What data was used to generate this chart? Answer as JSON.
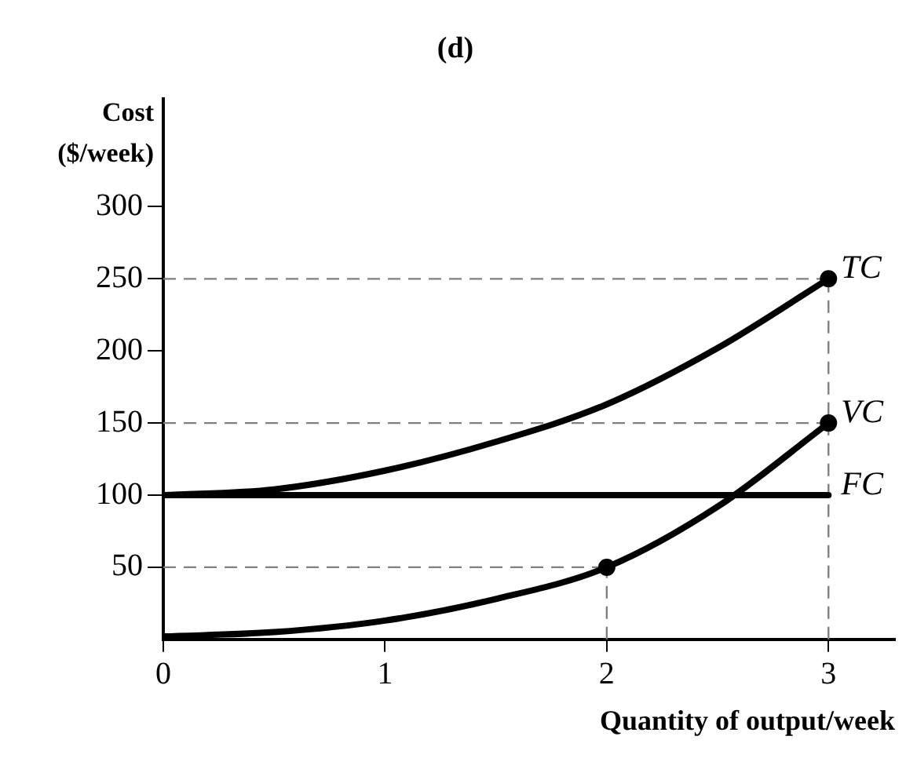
{
  "chart_data": {
    "type": "line",
    "title": "(d)",
    "xlabel": "Quantity of output/week",
    "ylabel": "Cost\n($/week)",
    "x": [
      0,
      0.5,
      1,
      1.5,
      2,
      2.5,
      3
    ],
    "series": [
      {
        "name": "TC",
        "color": "#000000",
        "values": [
          100,
          104,
          117,
          137,
          163,
          202,
          250
        ]
      },
      {
        "name": "VC",
        "color": "#000000",
        "values": [
          2,
          5,
          13,
          28,
          50,
          92,
          150
        ]
      },
      {
        "name": "FC",
        "color": "#000000",
        "values": [
          100,
          100,
          100,
          100,
          100,
          100,
          100
        ]
      },
      {
        "type": "scatter",
        "color": "#000000",
        "marker": "circle",
        "values": [
          null,
          null,
          null,
          null,
          50,
          null,
          150
        ]
      },
      {
        "type": "scatter",
        "color": "#000000",
        "marker": "circle",
        "values": [
          null,
          null,
          null,
          null,
          null,
          null,
          250
        ]
      }
    ],
    "ref_lines": [
      {
        "axis": "y",
        "value": 250,
        "color": "#808080",
        "line_style": "dashed"
      },
      {
        "axis": "y",
        "value": 150,
        "color": "#808080",
        "line_style": "dashed"
      },
      {
        "axis": "y",
        "value": 50,
        "color": "#808080",
        "line_style": "dashed"
      },
      {
        "axis": "x",
        "value": 2,
        "color": "#808080",
        "line_style": "dashed"
      },
      {
        "axis": "x",
        "value": 3,
        "color": "#808080",
        "line_style": "dashed"
      }
    ],
    "xlim": [
      0,
      3.3
    ],
    "ylim": [
      0,
      375
    ],
    "xticks": [
      0,
      1,
      2,
      3
    ],
    "yticks": [
      50,
      100,
      150,
      200,
      250,
      300
    ],
    "grid": false,
    "legend": false,
    "marker": "none",
    "line_style": "solid"
  }
}
